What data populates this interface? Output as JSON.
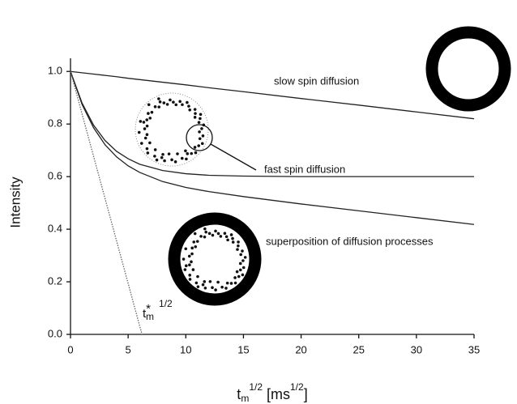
{
  "chart_data": {
    "type": "line",
    "ylabel": "Intensity",
    "xlabel": [
      "t",
      "m",
      "1/2",
      " [ms",
      "1/2",
      "]"
    ],
    "xlim": [
      0,
      35
    ],
    "xticks": [
      0,
      5,
      10,
      15,
      20,
      25,
      30,
      35
    ],
    "ylim": [
      0,
      1.05
    ],
    "yticks": [
      {
        "value": 0,
        "label": "0.0"
      },
      0.2,
      0.4,
      0.6,
      0.8,
      {
        "value": 1,
        "label": "1.0"
      }
    ],
    "annotations": [
      "slow spin diffusion",
      "fast spin diffusion",
      "superposition of diffusion processes"
    ],
    "slope_label": [
      "t",
      "*",
      "m",
      "1/2"
    ],
    "series": [
      {
        "color": "#222",
        "x": [
          0,
          1,
          2,
          3,
          4,
          5,
          6,
          8,
          10,
          12,
          15,
          20,
          25,
          30,
          35
        ],
        "values": [
          1.0,
          0.995,
          0.99,
          0.985,
          0.98,
          0.974,
          0.969,
          0.959,
          0.949,
          0.938,
          0.923,
          0.897,
          0.872,
          0.846,
          0.82
        ]
      },
      {
        "color": "#222",
        "x": [
          0,
          1,
          2,
          3,
          4,
          5,
          6,
          8,
          10,
          12,
          15,
          20,
          25,
          30,
          35
        ],
        "values": [
          1.0,
          0.88,
          0.796,
          0.737,
          0.696,
          0.668,
          0.647,
          0.623,
          0.611,
          0.605,
          0.602,
          0.6,
          0.6,
          0.6,
          0.6
        ]
      },
      {
        "color": "#222",
        "x": [
          0,
          1,
          2,
          3,
          4,
          5,
          6,
          8,
          10,
          12,
          15,
          20,
          25,
          30,
          35
        ],
        "values": [
          1.0,
          0.875,
          0.786,
          0.721,
          0.675,
          0.641,
          0.616,
          0.581,
          0.559,
          0.543,
          0.524,
          0.496,
          0.47,
          0.444,
          0.418
        ]
      },
      {
        "color": "#666",
        "dashed": true,
        "x": [
          0,
          6.2
        ],
        "values": [
          1.0,
          0
        ]
      }
    ]
  }
}
